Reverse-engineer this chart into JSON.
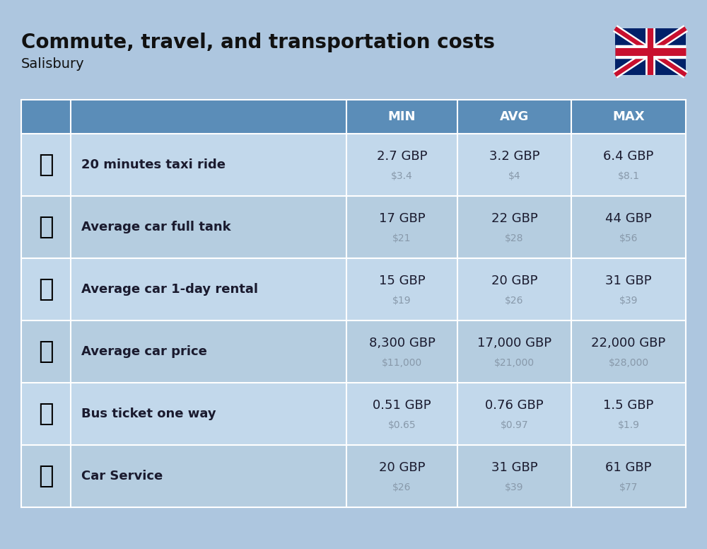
{
  "title": "Commute, travel, and transportation costs",
  "subtitle": "Salisbury",
  "bg_color": "#adc6df",
  "header_bg": "#5b8db8",
  "row_bg_even": "#c2d8eb",
  "row_bg_odd": "#b5cde0",
  "header_fg": "#ffffff",
  "cell_fg": "#1a1a2e",
  "usd_fg": "#8899aa",
  "col_headers": [
    "MIN",
    "AVG",
    "MAX"
  ],
  "rows": [
    {
      "label": "20 minutes taxi ride",
      "min_gbp": "2.7 GBP",
      "min_usd": "$3.4",
      "avg_gbp": "3.2 GBP",
      "avg_usd": "$4",
      "max_gbp": "6.4 GBP",
      "max_usd": "$8.1"
    },
    {
      "label": "Average car full tank",
      "min_gbp": "17 GBP",
      "min_usd": "$21",
      "avg_gbp": "22 GBP",
      "avg_usd": "$28",
      "max_gbp": "44 GBP",
      "max_usd": "$56"
    },
    {
      "label": "Average car 1-day rental",
      "min_gbp": "15 GBP",
      "min_usd": "$19",
      "avg_gbp": "20 GBP",
      "avg_usd": "$26",
      "max_gbp": "31 GBP",
      "max_usd": "$39"
    },
    {
      "label": "Average car price",
      "min_gbp": "8,300 GBP",
      "min_usd": "$11,000",
      "avg_gbp": "17,000 GBP",
      "avg_usd": "$21,000",
      "max_gbp": "22,000 GBP",
      "max_usd": "$28,000"
    },
    {
      "label": "Bus ticket one way",
      "min_gbp": "0.51 GBP",
      "min_usd": "$0.65",
      "avg_gbp": "0.76 GBP",
      "avg_usd": "$0.97",
      "max_gbp": "1.5 GBP",
      "max_usd": "$1.9"
    },
    {
      "label": "Car Service",
      "min_gbp": "20 GBP",
      "min_usd": "$26",
      "avg_gbp": "31 GBP",
      "avg_usd": "$39",
      "max_gbp": "61 GBP",
      "max_usd": "$77"
    }
  ]
}
